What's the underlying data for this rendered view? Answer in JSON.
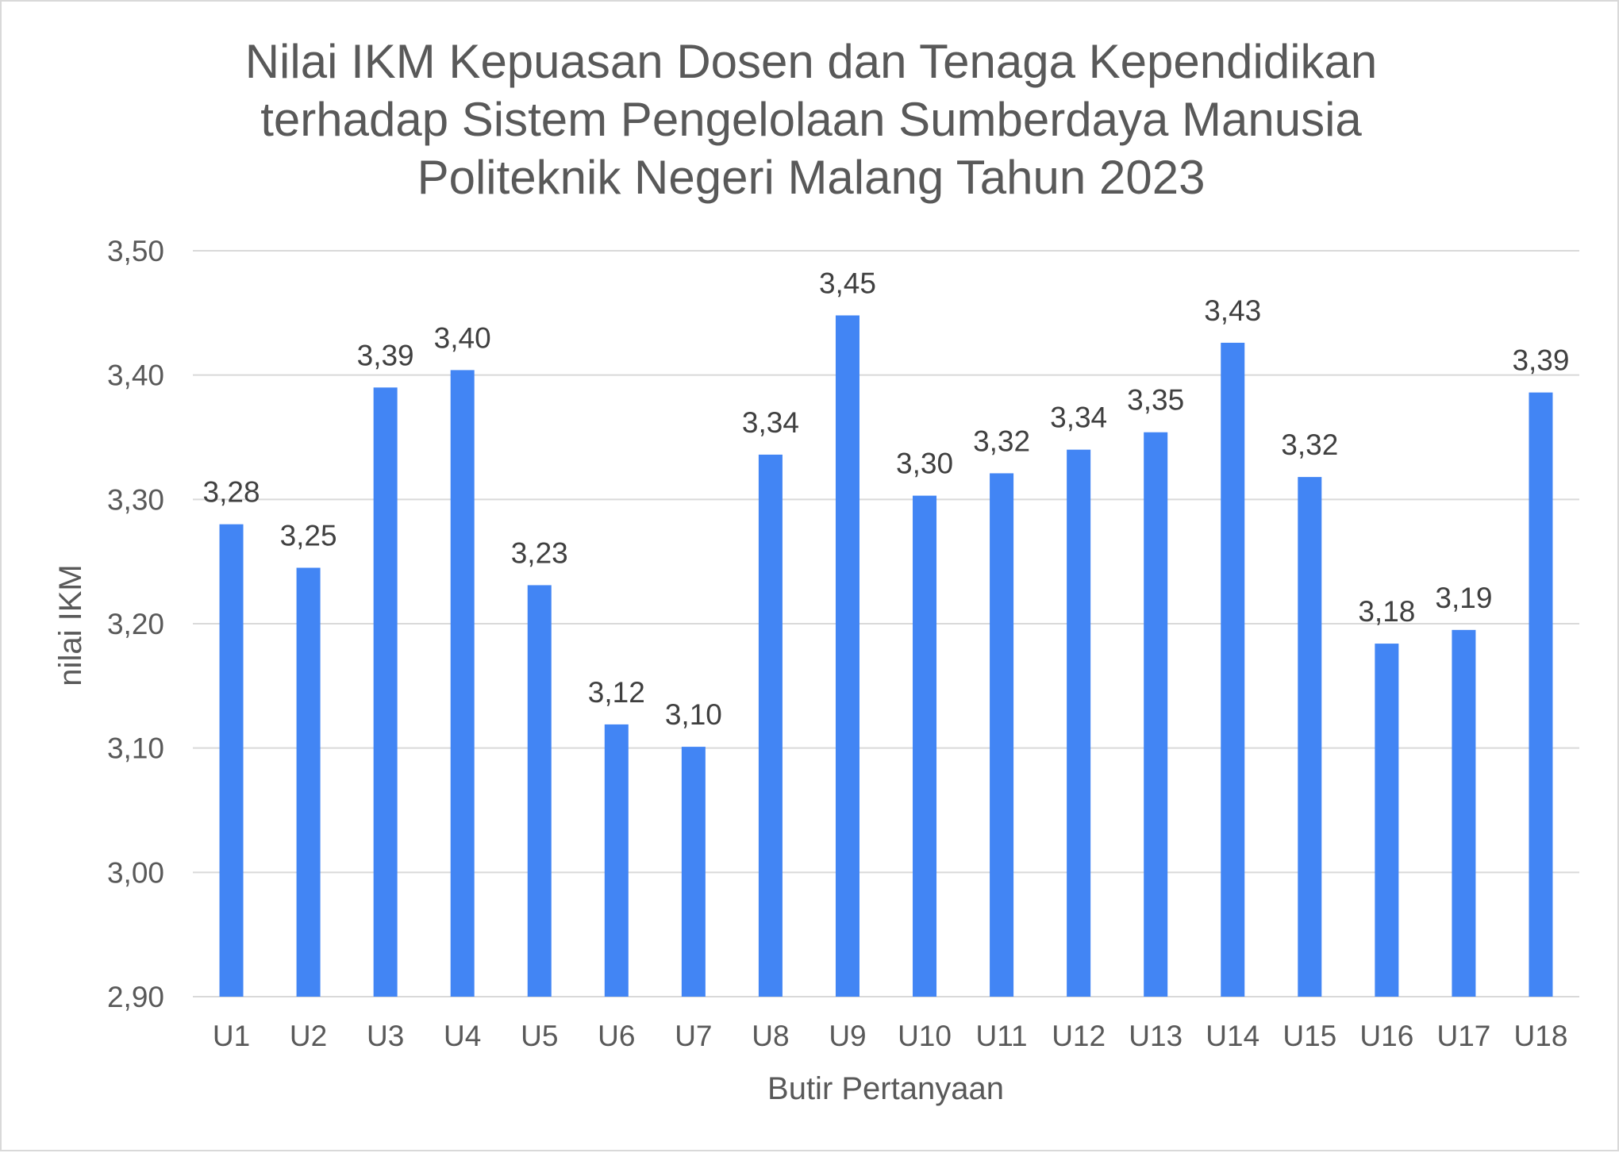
{
  "chart_data": {
    "type": "bar",
    "title": [
      "Nilai IKM Kepuasan Dosen dan Tenaga Kependidikan",
      "terhadap Sistem Pengelolaan Sumberdaya Manusia",
      "Politeknik Negeri Malang Tahun 2023"
    ],
    "xlabel": "Butir Pertanyaan",
    "ylabel": "nilai IKM",
    "categories": [
      "U1",
      "U2",
      "U3",
      "U4",
      "U5",
      "U6",
      "U7",
      "U8",
      "U9",
      "U10",
      "U11",
      "U12",
      "U13",
      "U14",
      "U15",
      "U16",
      "U17",
      "U18"
    ],
    "values": [
      3.28,
      3.245,
      3.39,
      3.404,
      3.231,
      3.119,
      3.101,
      3.336,
      3.448,
      3.303,
      3.321,
      3.34,
      3.354,
      3.426,
      3.318,
      3.184,
      3.195,
      3.386
    ],
    "value_labels": [
      "3,28",
      "3,25",
      "3,39",
      "3,40",
      "3,23",
      "3,12",
      "3,10",
      "3,34",
      "3,45",
      "3,30",
      "3,32",
      "3,34",
      "3,35",
      "3,43",
      "3,32",
      "3,18",
      "3,19",
      "3,39"
    ],
    "ylim": [
      2.9,
      3.5
    ],
    "y_ticks": [
      2.9,
      3.0,
      3.1,
      3.2,
      3.3,
      3.4,
      3.5
    ],
    "y_tick_labels": [
      "2,90",
      "3,00",
      "3,10",
      "3,20",
      "3,30",
      "3,40",
      "3,50"
    ],
    "grid": true,
    "legend": "none",
    "colors": {
      "bar": "#4285f4",
      "text": "#595959",
      "data_label": "#404040",
      "grid": "#d9d9d9"
    }
  }
}
